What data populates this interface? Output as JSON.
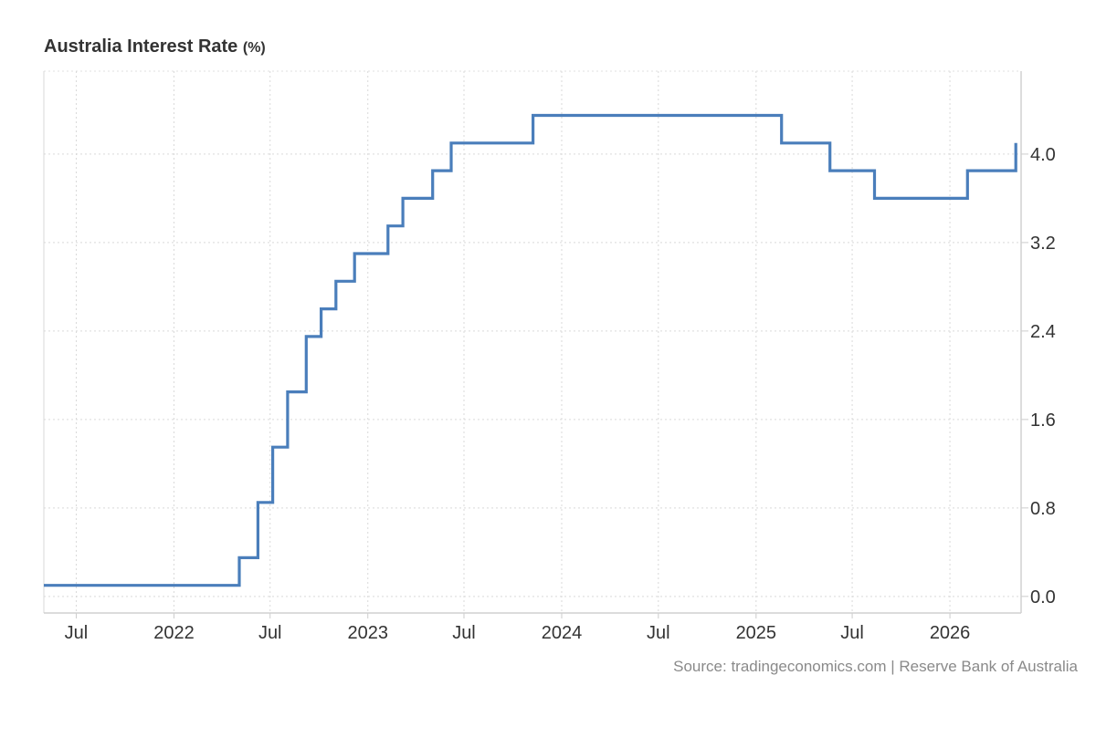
{
  "chart_data": {
    "type": "line",
    "style": "step",
    "title": "Australia Interest Rate",
    "unit": "(%)",
    "xlabel": "",
    "ylabel": "",
    "x_range": [
      "2021-05-01",
      "2026-05-15"
    ],
    "ylim": [
      -0.15,
      4.75
    ],
    "y_ticks": [
      {
        "value": 0.0,
        "label": "0.0"
      },
      {
        "value": 0.8,
        "label": "0.8"
      },
      {
        "value": 1.6,
        "label": "1.6"
      },
      {
        "value": 2.4,
        "label": "2.4"
      },
      {
        "value": 3.2,
        "label": "3.2"
      },
      {
        "value": 4.0,
        "label": "4.0"
      }
    ],
    "x_ticks": [
      {
        "date": "2021-07-01",
        "label": "Jul"
      },
      {
        "date": "2022-01-01",
        "label": "2022"
      },
      {
        "date": "2022-07-01",
        "label": "Jul"
      },
      {
        "date": "2023-01-01",
        "label": "2023"
      },
      {
        "date": "2023-07-01",
        "label": "Jul"
      },
      {
        "date": "2024-01-01",
        "label": "2024"
      },
      {
        "date": "2024-07-01",
        "label": "Jul"
      },
      {
        "date": "2025-01-01",
        "label": "2025"
      },
      {
        "date": "2025-07-01",
        "label": "Jul"
      },
      {
        "date": "2026-01-01",
        "label": "2026"
      }
    ],
    "grid": true,
    "y_axis_position": "right",
    "line_color": "#4a7ebb",
    "series": [
      {
        "points": [
          {
            "date": "2021-05-01",
            "value": 0.1
          },
          {
            "date": "2022-05-04",
            "value": 0.35
          },
          {
            "date": "2022-06-08",
            "value": 0.85
          },
          {
            "date": "2022-07-06",
            "value": 1.35
          },
          {
            "date": "2022-08-03",
            "value": 1.85
          },
          {
            "date": "2022-09-07",
            "value": 2.35
          },
          {
            "date": "2022-10-05",
            "value": 2.6
          },
          {
            "date": "2022-11-02",
            "value": 2.85
          },
          {
            "date": "2022-12-07",
            "value": 3.1
          },
          {
            "date": "2023-02-08",
            "value": 3.35
          },
          {
            "date": "2023-03-08",
            "value": 3.6
          },
          {
            "date": "2023-05-03",
            "value": 3.85
          },
          {
            "date": "2023-06-07",
            "value": 4.1
          },
          {
            "date": "2023-11-08",
            "value": 4.35
          },
          {
            "date": "2025-02-18",
            "value": 4.1
          },
          {
            "date": "2025-05-20",
            "value": 3.85
          },
          {
            "date": "2025-08-12",
            "value": 3.6
          },
          {
            "date": "2026-02-03",
            "value": 3.85
          },
          {
            "date": "2026-05-05",
            "value": 4.1
          }
        ]
      }
    ]
  },
  "source": "Source: tradingeconomics.com | Reserve Bank of Australia"
}
